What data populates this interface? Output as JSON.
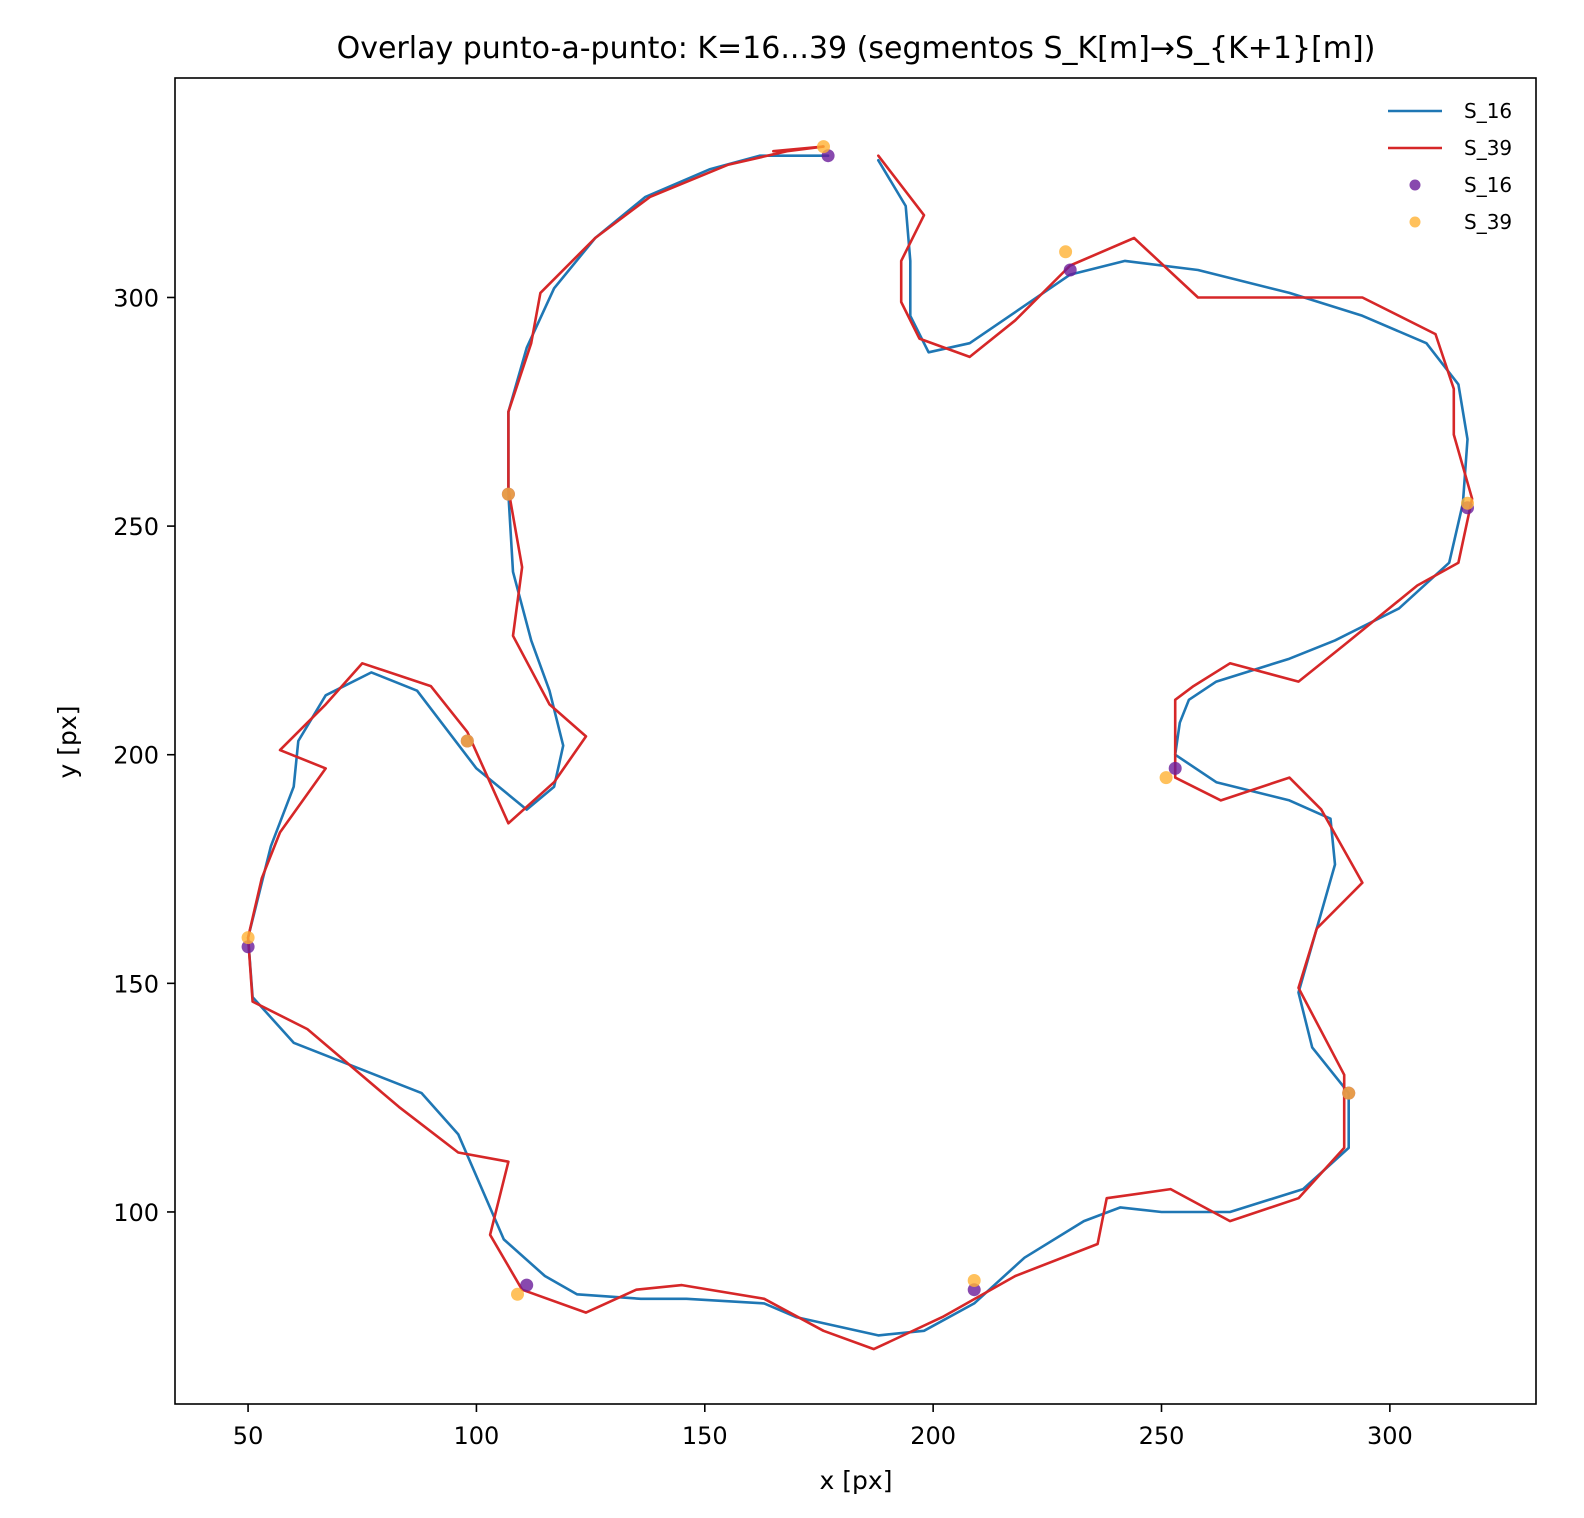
{
  "chart_data": {
    "type": "line",
    "title": "Overlay punto-a-punto: K=16...39 (segmentos S_K[m]→S_{K+1}[m])",
    "xlabel": "x [px]",
    "ylabel": "y [px]",
    "xlim": [
      34,
      332
    ],
    "ylim": [
      58,
      348
    ],
    "xticks": [
      50,
      100,
      150,
      200,
      250,
      300
    ],
    "yticks": [
      100,
      150,
      200,
      250,
      300
    ],
    "grid": false,
    "legend_position": "top-right",
    "series": [
      {
        "name": "S_16",
        "kind": "line",
        "color": "#1f77b4",
        "points": [
          [
            188,
            330
          ],
          [
            194,
            320
          ],
          [
            195,
            308
          ],
          [
            195,
            296
          ],
          [
            199,
            288
          ],
          [
            208,
            290
          ],
          [
            230,
            305
          ],
          [
            242,
            308
          ],
          [
            258,
            306
          ],
          [
            278,
            301
          ],
          [
            294,
            296
          ],
          [
            308,
            290
          ],
          [
            315,
            281
          ],
          [
            317,
            269
          ],
          [
            316,
            255
          ],
          [
            313,
            242
          ],
          [
            302,
            232
          ],
          [
            288,
            225
          ],
          [
            278,
            221
          ],
          [
            262,
            216
          ],
          [
            256,
            212
          ],
          [
            254,
            207
          ],
          [
            253,
            200
          ],
          [
            262,
            194
          ],
          [
            278,
            190
          ],
          [
            287,
            186
          ],
          [
            288,
            176
          ],
          [
            280,
            148
          ],
          [
            283,
            136
          ],
          [
            291,
            126
          ],
          [
            291,
            114
          ],
          [
            281,
            105
          ],
          [
            265,
            100
          ],
          [
            250,
            100
          ],
          [
            241,
            101
          ],
          [
            233,
            98
          ],
          [
            220,
            90
          ],
          [
            209,
            80
          ],
          [
            198,
            74
          ],
          [
            188,
            73
          ],
          [
            170,
            77
          ],
          [
            163,
            80
          ],
          [
            146,
            81
          ],
          [
            136,
            81
          ],
          [
            122,
            82
          ],
          [
            115,
            86
          ],
          [
            106,
            94
          ],
          [
            96,
            117
          ],
          [
            88,
            126
          ],
          [
            60,
            137
          ],
          [
            51,
            147
          ],
          [
            50,
            160
          ],
          [
            55,
            180
          ],
          [
            60,
            193
          ],
          [
            61,
            203
          ],
          [
            67,
            213
          ],
          [
            77,
            218
          ],
          [
            87,
            214
          ],
          [
            100,
            197
          ],
          [
            111,
            188
          ],
          [
            117,
            193
          ],
          [
            119,
            202
          ],
          [
            116,
            214
          ],
          [
            112,
            225
          ],
          [
            108,
            240
          ],
          [
            107,
            257
          ],
          [
            107,
            275
          ],
          [
            111,
            289
          ],
          [
            117,
            302
          ],
          [
            126,
            313
          ],
          [
            137,
            322
          ],
          [
            151,
            328
          ],
          [
            162,
            331
          ],
          [
            169,
            331
          ],
          [
            177,
            331
          ]
        ]
      },
      {
        "name": "S_39",
        "kind": "line",
        "color": "#d62728",
        "points": [
          [
            188,
            331
          ],
          [
            198,
            318
          ],
          [
            193,
            308
          ],
          [
            193,
            299
          ],
          [
            197,
            291
          ],
          [
            208,
            287
          ],
          [
            218,
            295
          ],
          [
            230,
            307
          ],
          [
            244,
            313
          ],
          [
            258,
            300
          ],
          [
            278,
            300
          ],
          [
            294,
            300
          ],
          [
            310,
            292
          ],
          [
            314,
            280
          ],
          [
            314,
            270
          ],
          [
            318,
            256
          ],
          [
            315,
            242
          ],
          [
            306,
            237
          ],
          [
            290,
            224
          ],
          [
            280,
            216
          ],
          [
            265,
            220
          ],
          [
            257,
            215
          ],
          [
            253,
            212
          ],
          [
            253,
            195
          ],
          [
            263,
            190
          ],
          [
            278,
            195
          ],
          [
            285,
            188
          ],
          [
            294,
            172
          ],
          [
            284,
            162
          ],
          [
            280,
            149
          ],
          [
            290,
            130
          ],
          [
            290,
            114
          ],
          [
            280,
            103
          ],
          [
            265,
            98
          ],
          [
            252,
            105
          ],
          [
            238,
            103
          ],
          [
            236,
            93
          ],
          [
            218,
            86
          ],
          [
            202,
            77
          ],
          [
            187,
            70
          ],
          [
            176,
            74
          ],
          [
            163,
            81
          ],
          [
            145,
            84
          ],
          [
            135,
            83
          ],
          [
            124,
            78
          ],
          [
            110,
            83
          ],
          [
            103,
            95
          ],
          [
            107,
            111
          ],
          [
            96,
            113
          ],
          [
            83,
            123
          ],
          [
            63,
            140
          ],
          [
            51,
            146
          ],
          [
            50,
            160
          ],
          [
            53,
            173
          ],
          [
            57,
            183
          ],
          [
            67,
            197
          ],
          [
            57,
            201
          ],
          [
            67,
            211
          ],
          [
            75,
            220
          ],
          [
            90,
            215
          ],
          [
            98,
            205
          ],
          [
            107,
            185
          ],
          [
            117,
            194
          ],
          [
            124,
            204
          ],
          [
            116,
            211
          ],
          [
            108,
            226
          ],
          [
            110,
            241
          ],
          [
            107,
            258
          ],
          [
            107,
            275
          ],
          [
            112,
            290
          ],
          [
            114,
            301
          ],
          [
            126,
            313
          ],
          [
            138,
            322
          ],
          [
            155,
            329
          ],
          [
            168,
            332
          ],
          [
            176,
            333
          ],
          [
            165,
            332
          ]
        ]
      },
      {
        "name": "S_16",
        "kind": "scatter",
        "color": "#6a1b9a",
        "points": [
          [
            177,
            331
          ],
          [
            230,
            306
          ],
          [
            317,
            254
          ],
          [
            253,
            197
          ],
          [
            291,
            126
          ],
          [
            209,
            83
          ],
          [
            111,
            84
          ],
          [
            98,
            203
          ],
          [
            50,
            158
          ],
          [
            107,
            257
          ]
        ]
      },
      {
        "name": "S_39",
        "kind": "scatter",
        "color": "#ffb233",
        "points": [
          [
            176,
            333
          ],
          [
            229,
            310
          ],
          [
            317,
            255
          ],
          [
            251,
            195
          ],
          [
            291,
            126
          ],
          [
            209,
            85
          ],
          [
            109,
            82
          ],
          [
            98,
            203
          ],
          [
            50,
            160
          ],
          [
            107,
            257
          ]
        ]
      }
    ]
  }
}
